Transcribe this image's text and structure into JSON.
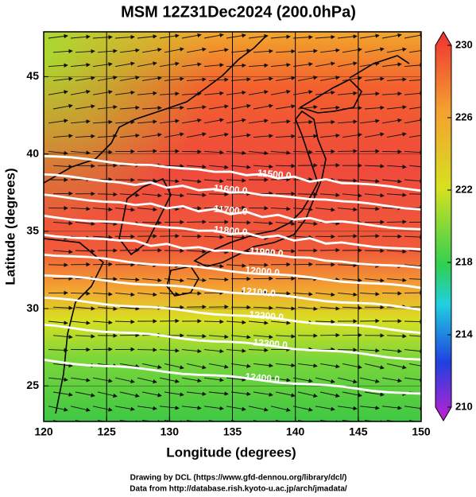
{
  "chart_data": {
    "type": "contour_map",
    "title": "MSM 12Z31Dec2024 (200.0hPa)",
    "xlabel": "Longitude (degrees)",
    "ylabel": "Latitude  (degrees)",
    "xlim": [
      120,
      150
    ],
    "xticks": [
      120,
      125,
      130,
      135,
      140,
      145,
      150
    ],
    "ylim": [
      22.7,
      47.9
    ],
    "yticks": [
      25,
      30,
      35,
      40,
      45
    ],
    "grid": true,
    "colorbar": {
      "lim": [
        210,
        230
      ],
      "ticks": [
        210,
        214,
        218,
        222,
        226,
        230
      ]
    },
    "contours": [
      {
        "value": 11500,
        "label": "11500.0"
      },
      {
        "value": 11600,
        "label": "11600.0"
      },
      {
        "value": 11700,
        "label": "11700.0"
      },
      {
        "value": 11800,
        "label": "11800.0"
      },
      {
        "value": 11900,
        "label": "11900.0"
      },
      {
        "value": 12000,
        "label": "12000.0"
      },
      {
        "value": 12100,
        "label": "12100.0"
      },
      {
        "value": 12200,
        "label": "12200.0"
      },
      {
        "value": 12300,
        "label": "12300.0"
      },
      {
        "value": 12400,
        "label": "12400.0"
      }
    ],
    "credits": [
      "Drawing by DCL (https://www.gfd-dennou.org/library/dcl/)",
      "Data from http://database.rish.kyoto-u.ac.jp/arch/jmadata/"
    ]
  }
}
